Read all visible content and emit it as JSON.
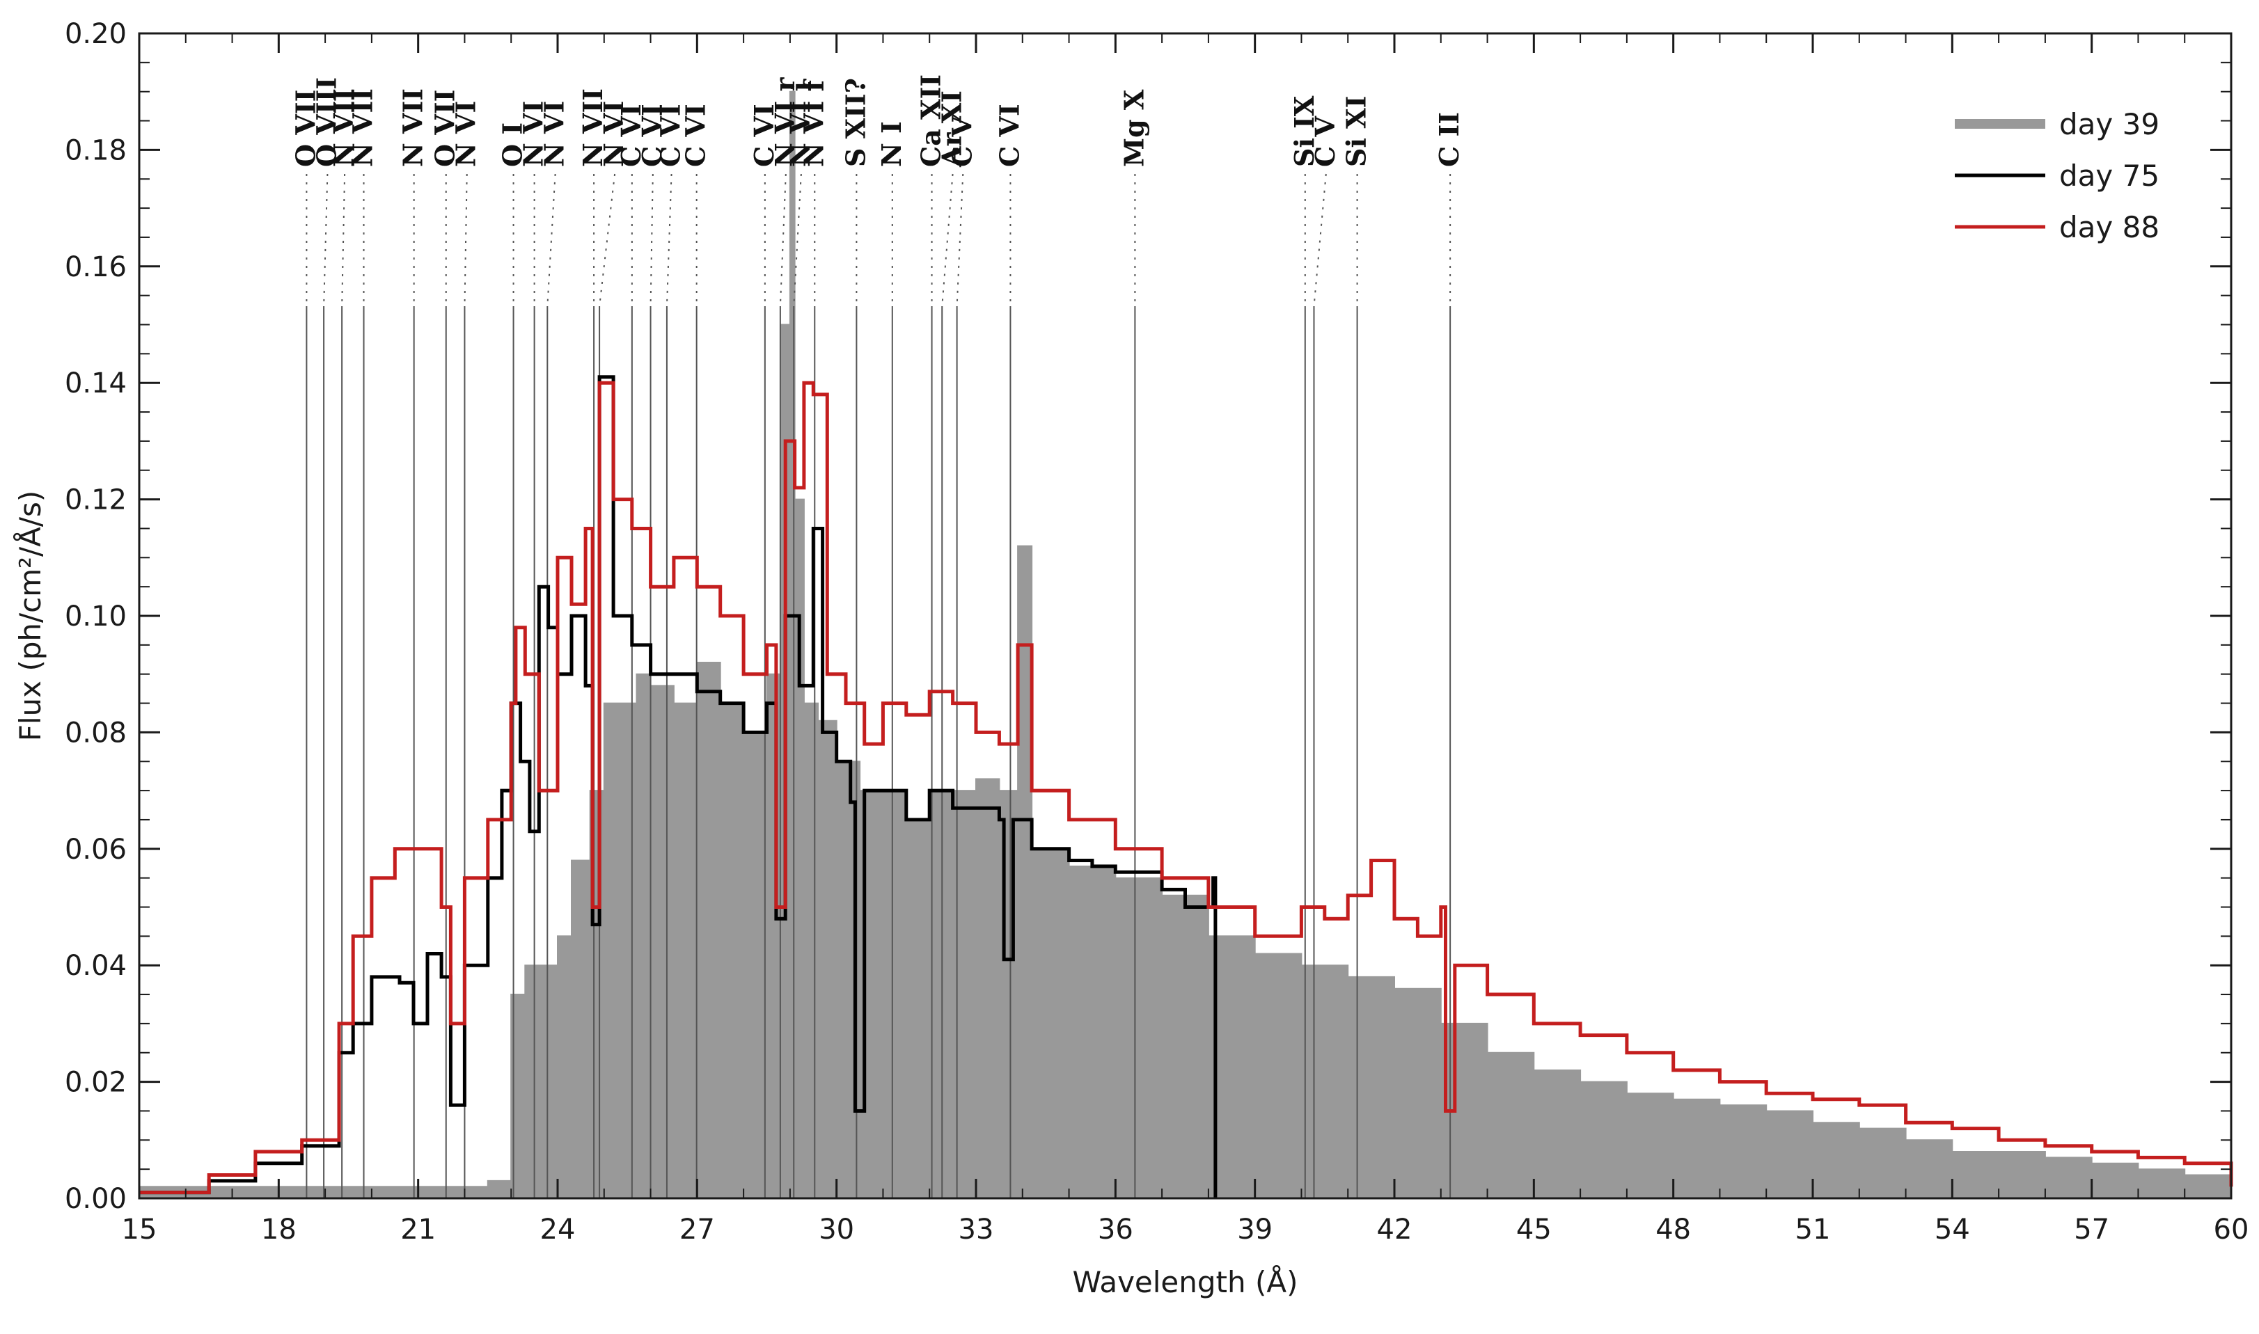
{
  "chart_data": {
    "type": "line",
    "title": "",
    "xlabel": "Wavelength (Å)",
    "ylabel": "Flux (ph/cm²/Å/s)",
    "xlim": [
      15,
      60
    ],
    "ylim": [
      0,
      0.2
    ],
    "xticks": [
      15,
      18,
      21,
      24,
      27,
      30,
      33,
      36,
      39,
      42,
      45,
      48,
      51,
      54,
      57,
      60
    ],
    "yticks": [
      0.0,
      0.02,
      0.04,
      0.06,
      0.08,
      0.1,
      0.12,
      0.14,
      0.16,
      0.18,
      0.2
    ],
    "xtick_labels": [
      "15",
      "18",
      "21",
      "24",
      "27",
      "30",
      "33",
      "36",
      "39",
      "42",
      "45",
      "48",
      "51",
      "54",
      "57",
      "60"
    ],
    "ytick_labels": [
      "0.00",
      "0.02",
      "0.04",
      "0.06",
      "0.08",
      "0.10",
      "0.12",
      "0.14",
      "0.16",
      "0.18",
      "0.20"
    ],
    "legend_position": "top-right",
    "colors": {
      "day39": "#999999",
      "day75": "#000000",
      "day88": "#c41e1e"
    },
    "series": [
      {
        "name": "day 39",
        "style": "filled-histogram",
        "x": [
          15,
          17,
          19,
          21,
          22.5,
          23,
          23.3,
          23.6,
          24,
          24.3,
          24.7,
          25,
          25.3,
          25.7,
          26,
          26.5,
          27,
          27.5,
          28,
          28.5,
          28.8,
          29,
          29.1,
          29.3,
          29.6,
          30,
          30.5,
          31,
          31.5,
          32,
          32.5,
          33,
          33.5,
          33.9,
          34.2,
          35,
          36,
          37,
          38,
          39,
          40,
          41,
          42,
          43,
          44,
          45,
          46,
          47,
          48,
          49,
          50,
          51,
          52,
          53,
          54,
          55,
          56,
          57,
          58,
          59,
          60
        ],
        "y": [
          0.002,
          0.002,
          0.002,
          0.002,
          0.003,
          0.035,
          0.04,
          0.04,
          0.045,
          0.058,
          0.07,
          0.085,
          0.085,
          0.09,
          0.088,
          0.085,
          0.092,
          0.085,
          0.08,
          0.09,
          0.15,
          0.19,
          0.12,
          0.085,
          0.082,
          0.075,
          0.07,
          0.07,
          0.065,
          0.07,
          0.07,
          0.072,
          0.07,
          0.112,
          0.06,
          0.057,
          0.055,
          0.052,
          0.045,
          0.042,
          0.04,
          0.038,
          0.036,
          0.03,
          0.025,
          0.022,
          0.02,
          0.018,
          0.017,
          0.016,
          0.015,
          0.013,
          0.012,
          0.01,
          0.008,
          0.008,
          0.007,
          0.006,
          0.005,
          0.004,
          0.003
        ]
      },
      {
        "name": "day 75",
        "style": "step",
        "x": [
          15,
          16.5,
          17.5,
          18.5,
          19.3,
          19.6,
          20,
          20.6,
          20.9,
          21.2,
          21.5,
          21.7,
          22,
          22.5,
          22.8,
          23,
          23.2,
          23.4,
          23.6,
          23.8,
          24,
          24.3,
          24.6,
          24.75,
          24.9,
          25.2,
          25.6,
          26,
          26.4,
          27,
          27.5,
          28,
          28.5,
          28.7,
          28.9,
          29.2,
          29.5,
          29.7,
          30,
          30.3,
          30.4,
          30.6,
          31,
          31.5,
          32,
          32.5,
          33,
          33.5,
          33.6,
          33.8,
          34.2,
          35,
          35.5,
          36,
          37,
          37.5,
          38.1,
          38.15
        ],
        "y": [
          0.001,
          0.003,
          0.006,
          0.009,
          0.025,
          0.03,
          0.038,
          0.037,
          0.03,
          0.042,
          0.038,
          0.016,
          0.04,
          0.055,
          0.07,
          0.085,
          0.075,
          0.063,
          0.105,
          0.098,
          0.09,
          0.1,
          0.088,
          0.047,
          0.141,
          0.1,
          0.095,
          0.09,
          0.09,
          0.087,
          0.085,
          0.08,
          0.085,
          0.048,
          0.1,
          0.088,
          0.115,
          0.08,
          0.075,
          0.068,
          0.015,
          0.07,
          0.07,
          0.065,
          0.07,
          0.067,
          0.067,
          0.065,
          0.041,
          0.065,
          0.06,
          0.058,
          0.057,
          0.056,
          0.053,
          0.05,
          0.055,
          0.0
        ]
      },
      {
        "name": "day 88",
        "style": "step",
        "x": [
          15,
          16.5,
          17.5,
          18.5,
          19.3,
          19.6,
          20,
          20.5,
          21,
          21.5,
          21.7,
          22,
          22.5,
          23,
          23.1,
          23.3,
          23.6,
          24,
          24.3,
          24.6,
          24.75,
          24.9,
          25.2,
          25.6,
          26,
          26.5,
          27,
          27.5,
          28,
          28.5,
          28.7,
          28.9,
          29.1,
          29.3,
          29.5,
          29.8,
          30.2,
          30.6,
          31,
          31.5,
          32,
          32.5,
          33,
          33.5,
          33.9,
          34.2,
          35,
          36,
          37,
          38,
          39,
          40,
          40.5,
          41,
          41.5,
          42,
          42.5,
          43,
          43.1,
          43.3,
          44,
          45,
          46,
          47,
          48,
          49,
          50,
          51,
          52,
          53,
          54,
          55,
          56,
          57,
          58,
          59,
          60
        ],
        "y": [
          0.001,
          0.004,
          0.008,
          0.01,
          0.03,
          0.045,
          0.055,
          0.06,
          0.06,
          0.05,
          0.03,
          0.055,
          0.065,
          0.085,
          0.098,
          0.09,
          0.07,
          0.11,
          0.102,
          0.115,
          0.05,
          0.14,
          0.12,
          0.115,
          0.105,
          0.11,
          0.105,
          0.1,
          0.09,
          0.095,
          0.05,
          0.13,
          0.122,
          0.14,
          0.138,
          0.09,
          0.085,
          0.078,
          0.085,
          0.083,
          0.087,
          0.085,
          0.08,
          0.078,
          0.095,
          0.07,
          0.065,
          0.06,
          0.055,
          0.05,
          0.045,
          0.05,
          0.048,
          0.052,
          0.058,
          0.048,
          0.045,
          0.05,
          0.015,
          0.04,
          0.035,
          0.03,
          0.028,
          0.025,
          0.022,
          0.02,
          0.018,
          0.017,
          0.016,
          0.013,
          0.012,
          0.01,
          0.009,
          0.008,
          0.007,
          0.006,
          0.002
        ]
      }
    ],
    "line_markers": [
      {
        "label": "O VII",
        "x": 18.6
      },
      {
        "label": "O VIII",
        "x": 18.97
      },
      {
        "label": "N VII",
        "x": 19.36
      },
      {
        "label": "N VII",
        "x": 19.83
      },
      {
        "label": "N VII",
        "x": 20.91
      },
      {
        "label": "O VII",
        "x": 21.6
      },
      {
        "label": "N VI",
        "x": 22.0
      },
      {
        "label": "O I",
        "x": 23.05
      },
      {
        "label": "N VI",
        "x": 23.5
      },
      {
        "label": "N VI",
        "x": 23.78
      },
      {
        "label": "N VII",
        "x": 24.78
      },
      {
        "label": "N VI",
        "x": 24.9
      },
      {
        "label": "C VI",
        "x": 25.6
      },
      {
        "label": "C VI",
        "x": 26.0
      },
      {
        "label": "C VI",
        "x": 26.35
      },
      {
        "label": "C VI",
        "x": 26.99
      },
      {
        "label": "C VI",
        "x": 28.46
      },
      {
        "label": "N VI r",
        "x": 28.79
      },
      {
        "label": "N VI i",
        "x": 29.08
      },
      {
        "label": "N VI f",
        "x": 29.53
      },
      {
        "label": "S XII?",
        "x": 30.43
      },
      {
        "label": "N I",
        "x": 31.2
      },
      {
        "label": "Ca XII",
        "x": 32.05
      },
      {
        "label": "Ar XI",
        "x": 32.27
      },
      {
        "label": "C V",
        "x": 32.59
      },
      {
        "label": "C VI",
        "x": 33.74
      },
      {
        "label": "Mg X",
        "x": 36.42
      },
      {
        "label": "Si IX",
        "x": 40.08
      },
      {
        "label": "C V",
        "x": 40.27
      },
      {
        "label": "Si XI",
        "x": 41.2
      },
      {
        "label": "C II",
        "x": 43.2
      }
    ]
  }
}
